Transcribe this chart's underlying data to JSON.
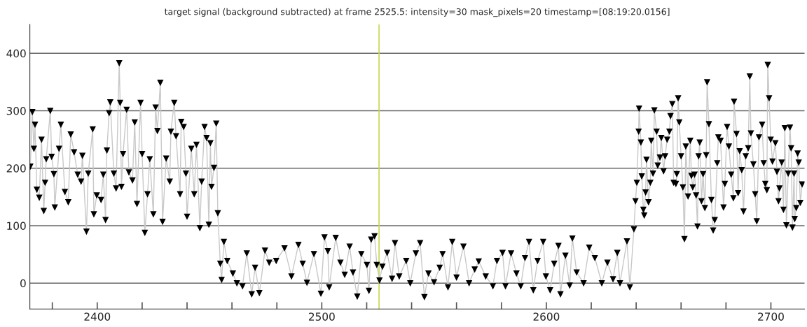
{
  "chart_data": {
    "type": "line",
    "title": "target signal (background subtracted) at frame 2525.5: intensity=30 mask_pixels=20 timestamp=[08:19:20.0156]",
    "series": [
      {
        "color": "#000000",
        "marker": "triangle",
        "x": [
          2370.2,
          2371.1,
          2371.8,
          2372.3,
          2373.1,
          2374.2,
          2375.2,
          2376.2,
          2376.8,
          2377.3,
          2379.1,
          2379.7,
          2380.7,
          2381.1,
          2383,
          2383.8,
          2385.6,
          2387.1,
          2388.2,
          2389.7,
          2391.3,
          2392.8,
          2393.4,
          2395.2,
          2396,
          2398,
          2398.5,
          2399.8,
          2401.7,
          2402.7,
          2403.7,
          2404.3,
          2405.3,
          2405.8,
          2407.4,
          2408.4,
          2409.8,
          2410.2,
          2410.8,
          2411.5,
          2413.1,
          2414.1,
          2415.7,
          2416.7,
          2417.7,
          2419.3,
          2420,
          2421.2,
          2422.4,
          2423.4,
          2425,
          2426,
          2426.8,
          2428.1,
          2429.1,
          2430.7,
          2432.3,
          2432.8,
          2434.3,
          2435.1,
          2436.9,
          2437.4,
          2438.5,
          2439.5,
          2440,
          2441.9,
          2443.2,
          2444.2,
          2445.7,
          2446.5,
          2447.8,
          2448.7,
          2449.7,
          2450.4,
          2450.9,
          2452,
          2453,
          2453.7,
          2454.8,
          2455.4,
          2456.4,
          2457.9,
          2460.4,
          2462.2,
          2464.7,
          2466.6,
          2468.8,
          2470.3,
          2472.2,
          2474.7,
          2476.6,
          2479.7,
          2483.4,
          2486.5,
          2489.6,
          2491.5,
          2493.4,
          2496.5,
          2499.6,
          2501.2,
          2502.7,
          2503.3,
          2506.2,
          2508.3,
          2510.2,
          2512.4,
          2513.9,
          2515.8,
          2517.6,
          2520.1,
          2521,
          2522,
          2523.5,
          2524.5,
          2525.7,
          2527,
          2529.1,
          2531.3,
          2532.6,
          2534.5,
          2537.6,
          2539.4,
          2541.9,
          2543.8,
          2545.7,
          2547.5,
          2550,
          2552.5,
          2553.8,
          2556.2,
          2558.1,
          2560,
          2563.1,
          2565.6,
          2568.1,
          2569.9,
          2573,
          2576.2,
          2578,
          2580.5,
          2581.8,
          2584.3,
          2586.7,
          2588.6,
          2590.5,
          2592.3,
          2594.2,
          2596.1,
          2598.6,
          2599.8,
          2601.7,
          2603.5,
          2605.4,
          2606.3,
          2608.5,
          2610.4,
          2611.6,
          2613.5,
          2616.6,
          2619.1,
          2621.6,
          2624.7,
          2627.2,
          2629.7,
          2631.6,
          2632.8,
          2635.9,
          2637.2,
          2639,
          2639.7,
          2640.3,
          2641.1,
          2641.3,
          2642.1,
          2642.5,
          2643.2,
          2643.6,
          2644.2,
          2644.6,
          2645.5,
          2646.3,
          2646.7,
          2647.5,
          2648.1,
          2649.1,
          2649.6,
          2650.6,
          2651.2,
          2652.2,
          2652.9,
          2653.8,
          2654.8,
          2655.3,
          2656.1,
          2656.7,
          2657.7,
          2658.1,
          2658.7,
          2659.2,
          2660,
          2660.8,
          2661.5,
          2662.1,
          2663.1,
          2664.1,
          2664.6,
          2665.2,
          2666,
          2666.7,
          2667.3,
          2667.8,
          2668.3,
          2669.1,
          2669.8,
          2670.6,
          2671.2,
          2671.6,
          2672.4,
          2673.5,
          2674.3,
          2675,
          2676.1,
          2676.6,
          2677.6,
          2678.9,
          2679.5,
          2680.5,
          2681.3,
          2682.3,
          2683.3,
          2683.6,
          2684.7,
          2685.4,
          2686.1,
          2687,
          2687.8,
          2688.8,
          2689.9,
          2690.6,
          2691.1,
          2692.2,
          2693,
          2693.7,
          2694.7,
          2696.1,
          2696.8,
          2697.5,
          2698.2,
          2698.6,
          2699.2,
          2699.9,
          2700.7,
          2702,
          2702.7,
          2703.4,
          2703.8,
          2704.8,
          2705.6,
          2706.2,
          2706.9,
          2707.7,
          2708.5,
          2709,
          2709.6,
          2710.3,
          2710.6,
          2711.3,
          2711.9,
          2712.4,
          2713.1,
          2713.9
        ],
        "values": [
          203,
          298,
          234,
          276,
          163,
          149,
          250,
          126,
          175,
          216,
          300,
          220,
          190,
          132,
          234,
          276,
          159,
          141,
          259,
          228,
          189,
          177,
          222,
          90,
          191,
          268,
          120,
          153,
          145,
          189,
          110,
          231,
          296,
          315,
          191,
          165,
          383,
          314,
          168,
          225,
          302,
          193,
          179,
          280,
          138,
          314,
          225,
          88,
          155,
          216,
          120,
          306,
          265,
          349,
          107,
          217,
          177,
          264,
          314,
          256,
          155,
          281,
          272,
          191,
          116,
          234,
          155,
          241,
          96,
          177,
          272,
          253,
          102,
          244,
          168,
          201,
          278,
          122,
          34,
          6,
          72,
          39,
          17,
          0,
          -5,
          52,
          -19,
          27,
          -17,
          57,
          36,
          39,
          61,
          12,
          67,
          34,
          1,
          51,
          -18,
          80,
          56,
          -7,
          79,
          36,
          15,
          64,
          19,
          -23,
          51,
          32,
          -13,
          76,
          82,
          32,
          5,
          29,
          53,
          8,
          70,
          12,
          39,
          0,
          52,
          70,
          -24,
          17,
          2,
          27,
          51,
          -7,
          72,
          10,
          64,
          0,
          24,
          38,
          12,
          -5,
          39,
          53,
          -5,
          52,
          17,
          -5,
          44,
          72,
          -12,
          39,
          72,
          12,
          -12,
          34,
          65,
          -19,
          48,
          -4,
          78,
          19,
          0,
          62,
          44,
          0,
          36,
          7,
          53,
          0,
          73,
          -7,
          94,
          143,
          175,
          264,
          304,
          245,
          186,
          128,
          118,
          158,
          215,
          141,
          175,
          248,
          191,
          301,
          264,
          205,
          219,
          253,
          195,
          221,
          250,
          264,
          291,
          312,
          175,
          173,
          190,
          322,
          280,
          221,
          167,
          77,
          238,
          151,
          248,
          187,
          167,
          189,
          153,
          99,
          221,
          245,
          143,
          190,
          131,
          223,
          350,
          277,
          145,
          92,
          110,
          209,
          254,
          248,
          132,
          173,
          272,
          238,
          189,
          148,
          316,
          260,
          157,
          230,
          197,
          125,
          221,
          235,
          360,
          261,
          207,
          155,
          108,
          254,
          276,
          209,
          173,
          162,
          380,
          322,
          250,
          212,
          244,
          194,
          143,
          165,
          210,
          128,
          270,
          101,
          191,
          271,
          235,
          97,
          191,
          112,
          131,
          226,
          210,
          140,
          172
        ]
      }
    ],
    "xlim": [
      2370,
      2715
    ],
    "ylim": [
      -45,
      450
    ],
    "xticks": [
      {
        "value": 2380,
        "label": null
      },
      2400,
      {
        "value": 2420,
        "label": null
      },
      {
        "value": 2440,
        "label": null
      },
      {
        "value": 2460,
        "label": null
      },
      {
        "value": 2480,
        "label": null
      },
      2500,
      {
        "value": 2520,
        "label": null
      },
      {
        "value": 2540,
        "label": null
      },
      {
        "value": 2560,
        "label": null
      },
      {
        "value": 2580,
        "label": null
      },
      2600,
      {
        "value": 2620,
        "label": null
      },
      {
        "value": 2640,
        "label": null
      },
      {
        "value": 2660,
        "label": null
      },
      {
        "value": 2680,
        "label": null
      },
      2700
    ],
    "yticks": [
      0,
      100,
      200,
      300,
      400
    ],
    "grid": "y",
    "ref_lines": [
      {
        "axis": "x",
        "value": 2525.5,
        "color": "#c8d84e"
      }
    ]
  }
}
